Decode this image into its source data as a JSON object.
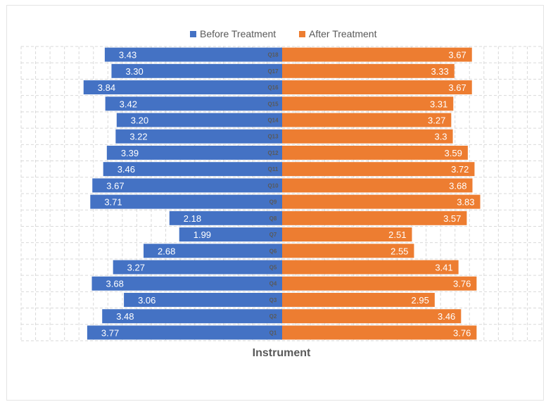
{
  "chart_data": {
    "type": "bar",
    "orientation": "horizontal",
    "layout": "butterfly",
    "categories": [
      "Q1",
      "Q2",
      "Q3",
      "Q4",
      "Q5",
      "Q6",
      "Q7",
      "Q8",
      "Q9",
      "Q10",
      "Q11",
      "Q12",
      "Q13",
      "Q14",
      "Q15",
      "Q16",
      "Q17",
      "Q18"
    ],
    "series": [
      {
        "name": "Before Treatment",
        "color": "#4472C4",
        "values": [
          3.77,
          3.48,
          3.06,
          3.68,
          3.27,
          2.68,
          1.99,
          2.18,
          3.71,
          3.67,
          3.46,
          3.39,
          3.22,
          3.2,
          3.42,
          3.84,
          3.3,
          3.43
        ],
        "labels": [
          "3.77",
          "3.48",
          "3.06",
          "3.68",
          "3.27",
          "2.68",
          "1.99",
          "2.18",
          "3.71",
          "3.67",
          "3.46",
          "3.39",
          "3.22",
          "3.20",
          "3.42",
          "3.84",
          "3.30",
          "3.43"
        ]
      },
      {
        "name": "After Treatment",
        "color": "#ED7D31",
        "values": [
          3.76,
          3.46,
          2.95,
          3.76,
          3.41,
          2.55,
          2.51,
          3.57,
          3.83,
          3.68,
          3.72,
          3.59,
          3.3,
          3.27,
          3.31,
          3.67,
          3.33,
          3.67
        ],
        "labels": [
          "3.76",
          "3.46",
          "2.95",
          "3.76",
          "3.41",
          "2.55",
          "2.51",
          "3.57",
          "3.83",
          "3.68",
          "3.72",
          "3.59",
          "3.3",
          "3.27",
          "3.31",
          "3.67",
          "3.33",
          "3.67"
        ]
      }
    ],
    "xlabel": "Instrument",
    "ylabel": "",
    "title": "",
    "legend_position": "top",
    "grid": true
  }
}
